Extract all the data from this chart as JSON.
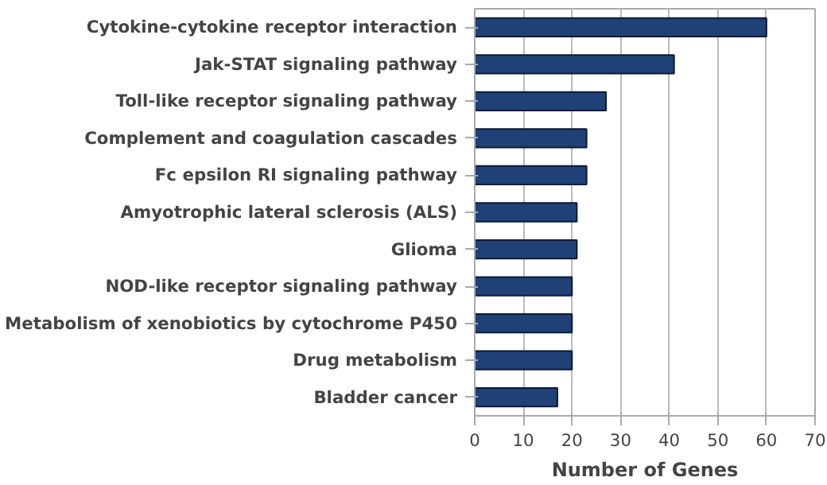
{
  "chart_data": {
    "type": "bar",
    "orientation": "horizontal",
    "xlabel": "Number of Genes",
    "categories": [
      "Cytokine-cytokine receptor interaction",
      "Jak-STAT signaling pathway",
      "Toll-like receptor signaling pathway",
      "Complement and coagulation cascades",
      "Fc epsilon RI signaling pathway",
      "Amyotrophic lateral sclerosis (ALS)",
      "Glioma",
      "NOD-like receptor signaling pathway",
      "Metabolism of xenobiotics by cytochrome P450",
      "Drug metabolism",
      "Bladder cancer"
    ],
    "values": [
      60,
      41,
      27,
      23,
      23,
      21,
      21,
      20,
      20,
      20,
      17
    ],
    "color": "#1f4178",
    "xlim": [
      0,
      70
    ],
    "xticks": [
      0,
      10,
      20,
      30,
      40,
      50,
      60,
      70
    ],
    "grid": "x"
  }
}
